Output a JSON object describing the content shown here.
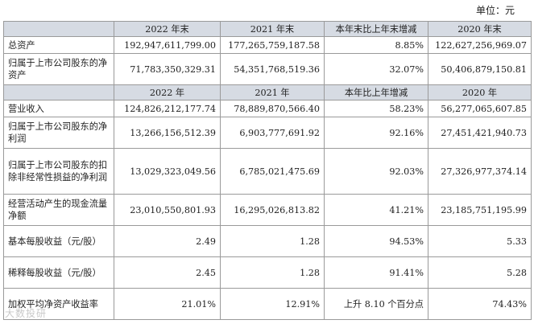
{
  "unit_label": "单位：元",
  "table": {
    "header1": [
      "",
      "2022 年末",
      "2021 年末",
      "本年末比上年末增减",
      "2020 年末"
    ],
    "rows1": [
      {
        "label": "总资产",
        "values": [
          "192,947,611,799.00",
          "177,265,759,187.58",
          "8.85%",
          "122,627,256,969.07"
        ]
      },
      {
        "label": "归属于上市公司股东的净资产",
        "values": [
          "71,783,350,329.31",
          "54,351,768,519.36",
          "32.07%",
          "50,406,879,150.81"
        ]
      }
    ],
    "header2": [
      "",
      "2022 年",
      "2021 年",
      "本年比上年增减",
      "2020 年"
    ],
    "rows2": [
      {
        "label": "营业收入",
        "values": [
          "124,826,212,177.74",
          "78,889,870,566.40",
          "58.23%",
          "56,277,065,607.85"
        ]
      },
      {
        "label": "归属于上市公司股东的净利润",
        "values": [
          "13,266,156,512.39",
          "6,903,777,691.92",
          "92.16%",
          "27,451,421,940.73"
        ]
      },
      {
        "label": "归属于上市公司股东的扣除非经常性损益的净利润",
        "values": [
          "13,029,323,049.56",
          "6,785,021,475.69",
          "92.03%",
          "27,326,977,374.14"
        ]
      },
      {
        "label": "经营活动产生的现金流量净额",
        "values": [
          "23,010,550,801.93",
          "16,295,026,813.82",
          "41.21%",
          "23,185,751,195.99"
        ]
      },
      {
        "label": "基本每股收益（元/股）",
        "values": [
          "2.49",
          "1.28",
          "94.53%",
          "5.33"
        ]
      },
      {
        "label": "稀释每股收益（元/股）",
        "values": [
          "2.45",
          "1.28",
          "91.41%",
          "5.28"
        ]
      },
      {
        "label": "加权平均净资产收益率",
        "values": [
          "21.01%",
          "12.91%",
          "上升 8.10 个百分点",
          "74.43%"
        ]
      }
    ]
  },
  "watermark": "大数投研"
}
